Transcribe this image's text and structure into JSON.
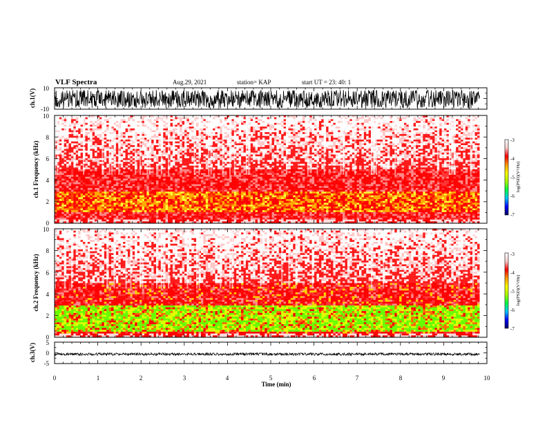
{
  "header": {
    "title": "VLF Spectra",
    "date": "Aug.29, 2021",
    "station": "station= KAP",
    "start": "start UT =  23: 40: 1"
  },
  "colorbar": {
    "label": "log(PSD)(V²/Hz)",
    "ticks": [
      "-3",
      "-4",
      "-5",
      "-6",
      "-7"
    ],
    "stops": [
      "#000066",
      "#0000ff",
      "#00c8ff",
      "#00ff44",
      "#aaff00",
      "#ffff00",
      "#ff9900",
      "#ff0000",
      "#ffcccc",
      "#ffffff"
    ]
  },
  "chart_data": [
    {
      "type": "line",
      "panel": "ch.1 waveform",
      "ylabel": "ch.1(V)",
      "ylim": [
        -10,
        10
      ],
      "y_ticks": [
        "10",
        "-10"
      ],
      "x_range_min": [
        0,
        9.83
      ],
      "values_range": [
        -9,
        8
      ]
    },
    {
      "type": "heatmap",
      "panel": "ch.1 spectrogram",
      "ylabel": "ch.1 Frequency (kHz)",
      "xlim": [
        0,
        10
      ],
      "ylim": [
        0,
        10
      ],
      "y_ticks": [
        "10",
        "8",
        "6",
        "4",
        "2",
        "0"
      ],
      "x_range_min": [
        0,
        9.83
      ],
      "z_range": [
        -7,
        -3
      ],
      "dominant_band_khz": [
        1,
        3
      ],
      "band_color": "yellow-red"
    },
    {
      "type": "heatmap",
      "panel": "ch.2 spectrogram",
      "ylabel": "ch.2 Frequency (kHz)",
      "xlim": [
        0,
        10
      ],
      "ylim": [
        0,
        10
      ],
      "y_ticks": [
        "10",
        "8",
        "6",
        "4",
        "2",
        "0"
      ],
      "x_range_min": [
        0,
        9.83
      ],
      "z_range": [
        -7,
        -3
      ],
      "dominant_band_khz": [
        0.5,
        3
      ],
      "band_color": "green-yellow"
    },
    {
      "type": "line",
      "panel": "ch.3 waveform",
      "ylabel": "ch.3(V)",
      "xlabel": "Time (min)",
      "xlim": [
        0,
        10
      ],
      "ylim": [
        -5,
        5
      ],
      "y_ticks": [
        "5",
        "0",
        "-5"
      ],
      "x_ticks": [
        "0",
        "1",
        "2",
        "3",
        "4",
        "5",
        "6",
        "7",
        "8",
        "9",
        "10"
      ],
      "x_range_min": [
        0,
        9.83
      ],
      "values_range": [
        -1.2,
        0
      ]
    }
  ]
}
